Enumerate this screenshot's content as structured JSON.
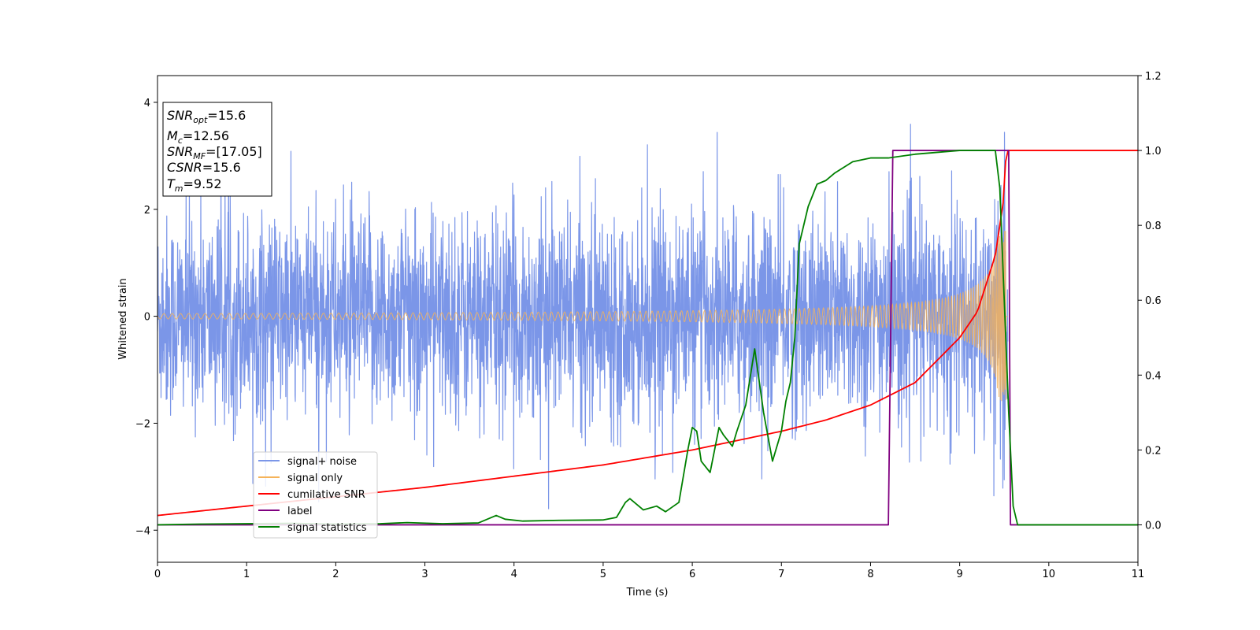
{
  "chart_data": {
    "type": "line",
    "xlabel": "Time (s)",
    "ylabel": "Whitened strain",
    "xlim": [
      0,
      11
    ],
    "ylim_left": [
      -4.6,
      4.5
    ],
    "ylim_right": [
      -0.1,
      1.2
    ],
    "x_ticks": [
      "0",
      "1",
      "2",
      "3",
      "4",
      "5",
      "6",
      "7",
      "8",
      "9",
      "10",
      "11"
    ],
    "y_ticks_left": [
      "−4",
      "−2",
      "0",
      "2",
      "4"
    ],
    "y_ticks_right": [
      "0.0",
      "0.2",
      "0.4",
      "0.6",
      "0.8",
      "1.0",
      "1.2"
    ],
    "grid": false,
    "legend_position": "lower-left",
    "info_box": {
      "snr_opt": {
        "symbol": "SNR",
        "sub": "opt",
        "value": "=15.6"
      },
      "mc": {
        "symbol": "M",
        "sub": "c",
        "value": "=12.56"
      },
      "snr_mf": {
        "symbol": "SNR",
        "sub": "MF",
        "value": "=[17.05]"
      },
      "csnr": {
        "symbol": "CSNR",
        "sub": "",
        "value": "=15.6"
      },
      "tm": {
        "symbol": "T",
        "sub": "m",
        "value": "=9.52"
      }
    },
    "series": [
      {
        "name": "signal+ noise",
        "color": "#7b96e8",
        "axis": "left",
        "description": "noise band roughly ±2 with spikes up to ~4",
        "noise_amplitude": 1.25,
        "spike_max": 4.1
      },
      {
        "name": "signal only",
        "color": "#f5b35a",
        "axis": "left",
        "chirp_merger_time": 9.52,
        "amplitude_at_start": 0.05,
        "amplitude_at_merger": 1.6
      },
      {
        "name": "cumilative SNR",
        "color": "#ff0000",
        "axis": "right",
        "x": [
          0,
          1,
          2,
          3,
          4,
          5,
          6,
          7,
          7.5,
          8,
          8.5,
          9,
          9.2,
          9.4,
          9.5,
          9.52,
          11
        ],
        "y": [
          0.025,
          0.05,
          0.075,
          0.1,
          0.13,
          0.16,
          0.2,
          0.25,
          0.28,
          0.32,
          0.38,
          0.5,
          0.57,
          0.72,
          0.88,
          1.0,
          1.0
        ]
      },
      {
        "name": "label",
        "color": "#800080",
        "axis": "right",
        "x": [
          0,
          8.2,
          8.25,
          9.55,
          9.57,
          11
        ],
        "y": [
          0,
          0,
          1.0,
          1.0,
          0,
          0
        ]
      },
      {
        "name": "signal statistics",
        "color": "#008000",
        "axis": "right",
        "x": [
          0,
          0.5,
          1,
          1.5,
          2,
          2.5,
          2.8,
          3.2,
          3.6,
          3.8,
          3.9,
          4.1,
          4.5,
          5.0,
          5.15,
          5.25,
          5.3,
          5.45,
          5.6,
          5.7,
          5.85,
          5.95,
          6.0,
          6.05,
          6.1,
          6.2,
          6.3,
          6.35,
          6.45,
          6.5,
          6.6,
          6.7,
          6.8,
          6.9,
          7.0,
          7.05,
          7.1,
          7.15,
          7.2,
          7.3,
          7.4,
          7.5,
          7.6,
          7.8,
          8.0,
          8.2,
          8.5,
          9.0,
          9.4,
          9.45,
          9.55,
          9.6,
          9.65,
          11
        ],
        "y": [
          0.0,
          0.002,
          0.003,
          0.004,
          0.002,
          0.003,
          0.006,
          0.003,
          0.005,
          0.025,
          0.015,
          0.01,
          0.012,
          0.013,
          0.02,
          0.06,
          0.07,
          0.04,
          0.05,
          0.035,
          0.06,
          0.2,
          0.26,
          0.25,
          0.17,
          0.14,
          0.26,
          0.24,
          0.21,
          0.25,
          0.32,
          0.47,
          0.3,
          0.17,
          0.25,
          0.33,
          0.38,
          0.5,
          0.75,
          0.85,
          0.91,
          0.92,
          0.94,
          0.97,
          0.98,
          0.98,
          0.99,
          1.0,
          1.0,
          0.9,
          0.3,
          0.05,
          0.0,
          0.0
        ]
      }
    ]
  }
}
